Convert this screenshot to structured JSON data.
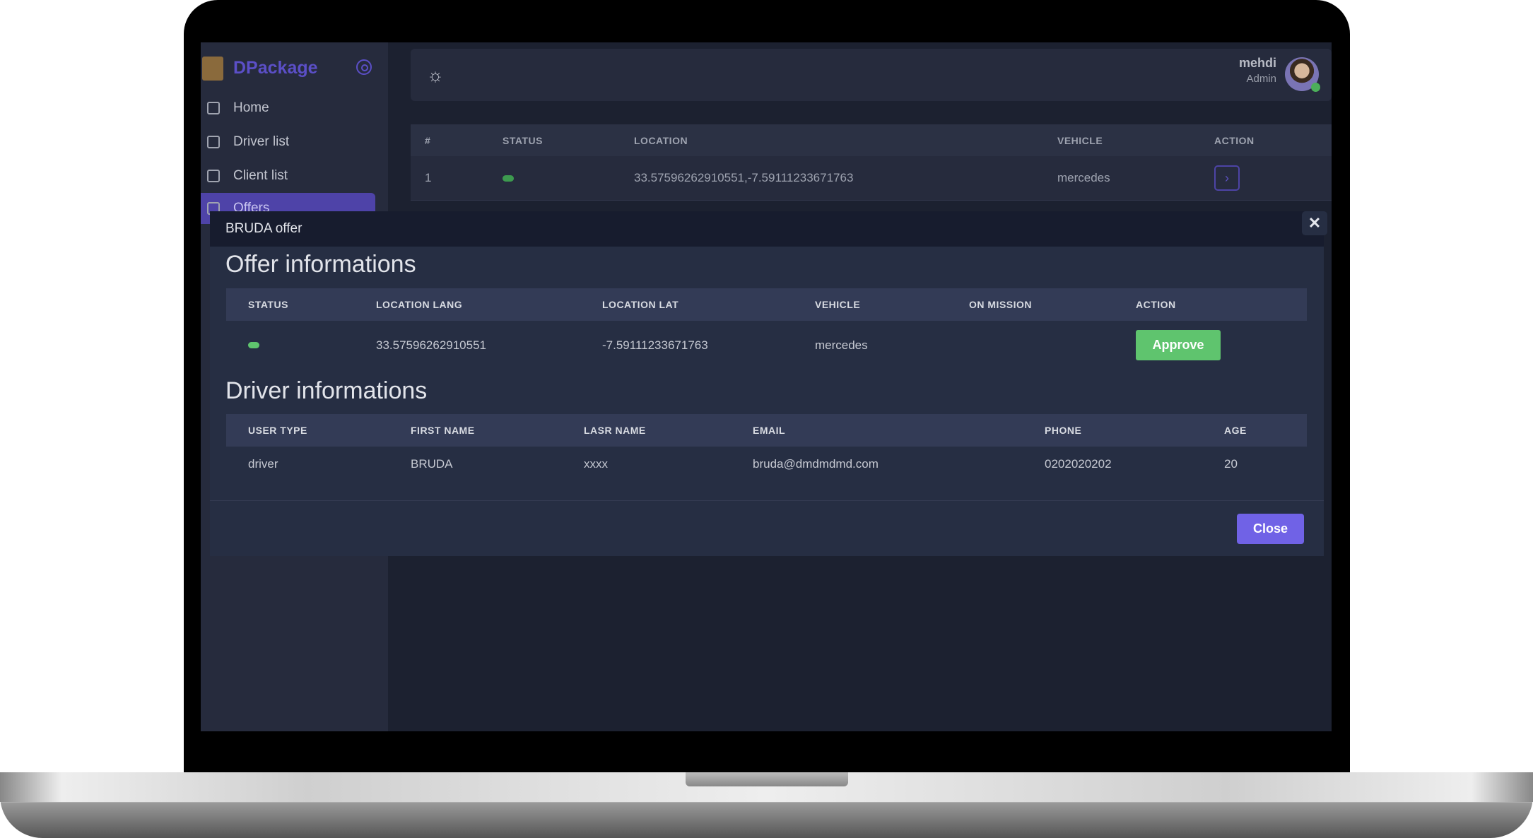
{
  "app": {
    "brand": "DPackage"
  },
  "sidebar": {
    "items": [
      {
        "label": "Home",
        "icon": "home-icon"
      },
      {
        "label": "Driver list",
        "icon": "box-icon"
      },
      {
        "label": "Client list",
        "icon": "clipboard-icon"
      },
      {
        "label": "Offers",
        "icon": "flag-icon",
        "active": true
      }
    ]
  },
  "header": {
    "theme_icon": "sun-icon",
    "user_name": "mehdi",
    "user_role": "Admin",
    "online_color": "#4caf5a"
  },
  "background_table": {
    "columns": [
      "#",
      "STATUS",
      "LOCATION",
      "VEHICLE",
      "ACTION"
    ],
    "rows": [
      {
        "index": "1",
        "status": "active",
        "location": "33.57596262910551,-7.59111233671763",
        "vehicle": "mercedes",
        "action_icon": "chevron-right-icon"
      }
    ]
  },
  "modal": {
    "title": "BRUDA offer",
    "close_icon": "✕",
    "offer": {
      "heading": "Offer informations",
      "columns": [
        "STATUS",
        "LOCATION LANG",
        "LOCATION LAT",
        "VEHICLE",
        "ON MISSION",
        "ACTION"
      ],
      "row": {
        "status": "active",
        "location_lang": "33.57596262910551",
        "location_lat": "-7.59111233671763",
        "vehicle": "mercedes",
        "on_mission": "",
        "action": "Approve"
      }
    },
    "driver": {
      "heading": "Driver informations",
      "columns": [
        "USER TYPE",
        "FIRST NAME",
        "LASR NAME",
        "EMAIL",
        "PHONE",
        "AGE"
      ],
      "row": {
        "user_type": "driver",
        "first_name": "BRUDA",
        "last_name": "xxxx",
        "email": "bruda@dmdmdmd.com",
        "phone": "0202020202",
        "age": "20"
      }
    },
    "close_label": "Close"
  },
  "colors": {
    "accent": "#7062e6",
    "brand": "#5b4fc7",
    "approve": "#5fc46e",
    "status_active": "#5fc46e"
  }
}
